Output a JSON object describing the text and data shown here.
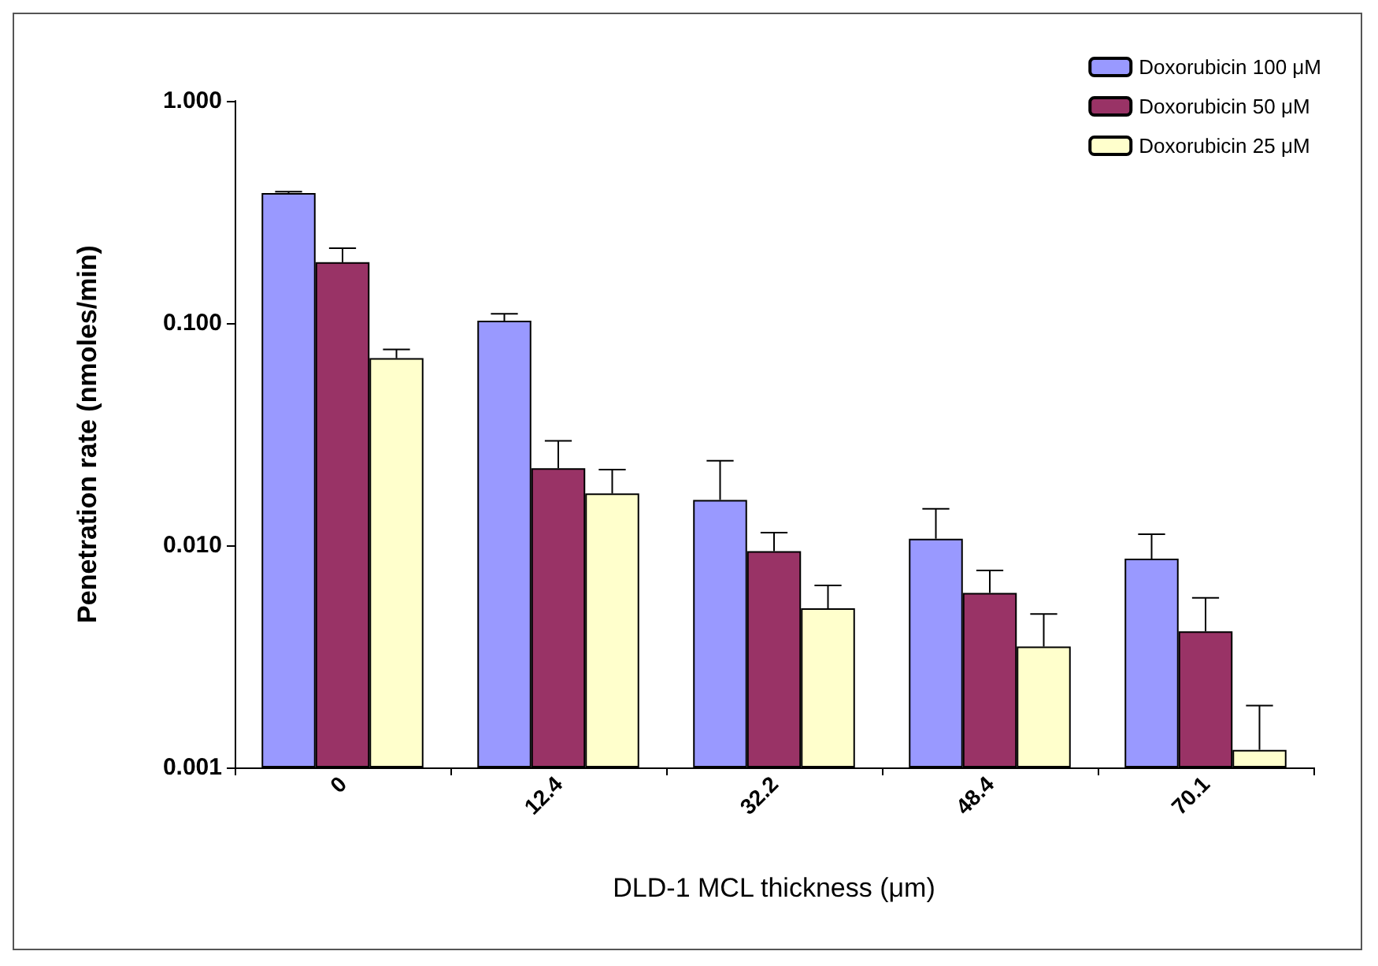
{
  "chart_data": {
    "type": "bar",
    "xlabel": "DLD-1 MCL thickness (μm)",
    "ylabel": "Penetration rate (nmoles/min)",
    "categories": [
      "0",
      "12.4",
      "32.2",
      "48.4",
      "70.1"
    ],
    "series": [
      {
        "name": "Doxorubicin 100 μM",
        "color": "#9999ff",
        "values": [
          0.385,
          0.1025,
          0.016,
          0.0107,
          0.0087
        ],
        "errors": [
          0.005,
          0.0075,
          0.008,
          0.0039,
          0.0025
        ]
      },
      {
        "name": "Doxorubicin 50 μM",
        "color": "#993366",
        "values": [
          0.188,
          0.0222,
          0.0094,
          0.0061,
          0.0041
        ],
        "errors": [
          0.029,
          0.0073,
          0.002,
          0.0016,
          0.0017
        ]
      },
      {
        "name": "Doxorubicin 25 μM",
        "color": "#ffffcc",
        "values": [
          0.0695,
          0.0171,
          0.0052,
          0.0035,
          0.0012
        ],
        "errors": [
          0.0065,
          0.0048,
          0.0014,
          0.0014,
          0.0007
        ]
      }
    ],
    "log": "y",
    "ylim": [
      0.001,
      1
    ],
    "yticks": [
      {
        "value": 0.001,
        "label": "0.001"
      },
      {
        "value": 0.01,
        "label": "0.010"
      },
      {
        "value": 0.1,
        "label": "0.100"
      },
      {
        "value": 1,
        "label": "1.000"
      }
    ],
    "grid": false,
    "legend": "top right"
  }
}
